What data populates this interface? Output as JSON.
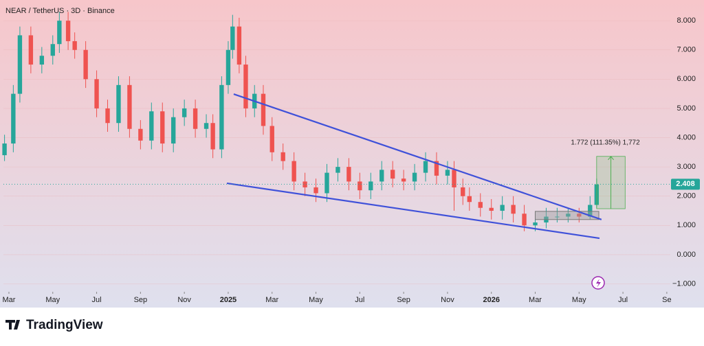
{
  "chart_data": {
    "type": "candlestick",
    "title": "NEAR / TetherUS · 3D · Binance",
    "brand": "TradingView",
    "up_color": "#26a69a",
    "down_color": "#ef5350",
    "xlim": [
      1.75,
      32.16
    ],
    "xticks": [
      {
        "value": 2,
        "label": "Mar"
      },
      {
        "value": 4,
        "label": "May"
      },
      {
        "value": 6,
        "label": "Jul"
      },
      {
        "value": 8,
        "label": "Sep"
      },
      {
        "value": 10,
        "label": "Nov"
      },
      {
        "value": 12,
        "label": "2025"
      },
      {
        "value": 14,
        "label": "Mar"
      },
      {
        "value": 16,
        "label": "May"
      },
      {
        "value": 18,
        "label": "Jul"
      },
      {
        "value": 20,
        "label": "Sep"
      },
      {
        "value": 22,
        "label": "Nov"
      },
      {
        "value": 24,
        "label": "2026"
      },
      {
        "value": 26,
        "label": "Mar"
      },
      {
        "value": 28,
        "label": "May"
      },
      {
        "value": 30,
        "label": "Jul"
      },
      {
        "value": 32,
        "label": "Se"
      }
    ],
    "ylim": [
      -1.27,
      8.59
    ],
    "yticks": [
      {
        "value": 8,
        "label": "8.000"
      },
      {
        "value": 7,
        "label": "7.000"
      },
      {
        "value": 6,
        "label": "6.000"
      },
      {
        "value": 5,
        "label": "5.000"
      },
      {
        "value": 4,
        "label": "4.000"
      },
      {
        "value": 3,
        "label": "3.000"
      },
      {
        "value": 2,
        "label": "2.000"
      },
      {
        "value": 1,
        "label": "1.000"
      },
      {
        "value": 0,
        "label": "0.000"
      },
      {
        "value": -1,
        "label": "−1.000"
      }
    ],
    "x": [
      1.8,
      2.2,
      2.5,
      3.0,
      3.5,
      4.0,
      4.3,
      4.7,
      5.0,
      5.5,
      6.0,
      6.5,
      7.0,
      7.5,
      8.0,
      8.5,
      9.0,
      9.5,
      10.0,
      10.5,
      11.0,
      11.3,
      11.7,
      12.0,
      12.2,
      12.5,
      12.8,
      13.2,
      13.6,
      14.0,
      14.5,
      15.0,
      15.5,
      16.0,
      16.5,
      17.0,
      17.5,
      18.0,
      18.5,
      19.0,
      19.5,
      20.0,
      20.5,
      21.0,
      21.5,
      22.0,
      22.3,
      22.7,
      23.0,
      23.5,
      24.0,
      24.5,
      25.0,
      25.5,
      26.0,
      26.5,
      27.0,
      27.5,
      28.0,
      28.5,
      28.8
    ],
    "ohlc": [
      [
        3.4,
        4.1,
        3.2,
        3.8
      ],
      [
        3.8,
        5.8,
        3.5,
        5.5
      ],
      [
        5.5,
        7.8,
        5.2,
        7.5
      ],
      [
        7.5,
        7.8,
        6.2,
        6.5
      ],
      [
        6.5,
        7.1,
        6.2,
        6.8
      ],
      [
        6.8,
        7.5,
        6.5,
        7.2
      ],
      [
        7.2,
        8.3,
        6.9,
        8.0
      ],
      [
        8.0,
        8.3,
        7.0,
        7.3
      ],
      [
        7.3,
        7.6,
        6.7,
        7.0
      ],
      [
        7.0,
        7.3,
        5.7,
        6.0
      ],
      [
        6.0,
        6.3,
        4.7,
        5.0
      ],
      [
        5.0,
        5.3,
        4.2,
        4.5
      ],
      [
        4.5,
        6.1,
        4.2,
        5.8
      ],
      [
        5.8,
        6.1,
        4.0,
        4.3
      ],
      [
        4.3,
        4.6,
        3.6,
        3.9
      ],
      [
        3.9,
        5.2,
        3.6,
        4.9
      ],
      [
        4.9,
        5.2,
        3.5,
        3.8
      ],
      [
        3.8,
        5.0,
        3.5,
        4.7
      ],
      [
        4.7,
        5.3,
        4.4,
        5.0
      ],
      [
        5.0,
        5.3,
        4.0,
        4.3
      ],
      [
        4.3,
        4.8,
        4.0,
        4.5
      ],
      [
        4.5,
        4.8,
        3.3,
        3.6
      ],
      [
        3.6,
        6.1,
        3.3,
        5.8
      ],
      [
        5.8,
        7.3,
        5.5,
        7.0
      ],
      [
        7.0,
        8.2,
        6.7,
        7.8
      ],
      [
        7.8,
        8.1,
        6.2,
        6.5
      ],
      [
        6.5,
        6.8,
        4.7,
        5.0
      ],
      [
        5.0,
        5.8,
        4.7,
        5.5
      ],
      [
        5.5,
        5.8,
        4.1,
        4.4
      ],
      [
        4.4,
        4.7,
        3.2,
        3.5
      ],
      [
        3.5,
        3.8,
        2.9,
        3.2
      ],
      [
        3.2,
        3.5,
        2.2,
        2.5
      ],
      [
        2.5,
        2.8,
        2.0,
        2.3
      ],
      [
        2.3,
        2.6,
        1.8,
        2.1
      ],
      [
        2.1,
        3.1,
        1.8,
        2.8
      ],
      [
        2.8,
        3.3,
        2.5,
        3.0
      ],
      [
        3.0,
        3.3,
        2.2,
        2.5
      ],
      [
        2.5,
        2.8,
        1.9,
        2.2
      ],
      [
        2.2,
        2.8,
        1.9,
        2.5
      ],
      [
        2.5,
        3.2,
        2.2,
        2.9
      ],
      [
        2.9,
        3.2,
        2.3,
        2.6
      ],
      [
        2.6,
        2.9,
        2.2,
        2.5
      ],
      [
        2.5,
        3.1,
        2.2,
        2.8
      ],
      [
        2.8,
        3.5,
        2.5,
        3.2
      ],
      [
        3.2,
        3.5,
        2.4,
        2.7
      ],
      [
        2.7,
        3.2,
        2.4,
        2.9
      ],
      [
        2.9,
        3.2,
        1.5,
        2.3
      ],
      [
        2.3,
        2.6,
        1.7,
        2.0
      ],
      [
        2.0,
        2.3,
        1.5,
        1.8
      ],
      [
        1.8,
        2.1,
        1.3,
        1.6
      ],
      [
        1.6,
        1.9,
        1.2,
        1.5
      ],
      [
        1.5,
        2.0,
        1.2,
        1.7
      ],
      [
        1.7,
        2.0,
        1.1,
        1.4
      ],
      [
        1.4,
        1.7,
        0.8,
        1.0
      ],
      [
        1.0,
        1.4,
        0.8,
        1.1
      ],
      [
        1.1,
        1.6,
        0.9,
        1.3
      ],
      [
        1.3,
        1.6,
        1.1,
        1.3
      ],
      [
        1.3,
        1.6,
        1.1,
        1.4
      ],
      [
        1.4,
        1.6,
        1.1,
        1.3
      ],
      [
        1.3,
        2.0,
        1.2,
        1.7
      ],
      [
        1.7,
        2.6,
        1.6,
        2.4
      ]
    ],
    "last_price": 2.408,
    "trendlines": [
      {
        "color": "#3f51d9",
        "x": [
          12.25,
          29.02
        ],
        "y": [
          5.49,
          1.2
        ]
      },
      {
        "color": "#3f51d9",
        "x": [
          11.94,
          28.93
        ],
        "y": [
          2.44,
          0.56
        ]
      }
    ],
    "range_box": {
      "x": [
        26.0,
        28.9
      ],
      "y": [
        1.2,
        1.48
      ]
    },
    "measure": {
      "x": [
        28.8,
        30.1
      ],
      "y": [
        1.57,
        3.36
      ],
      "label": "1.772 (111.35%) 1,772"
    }
  }
}
